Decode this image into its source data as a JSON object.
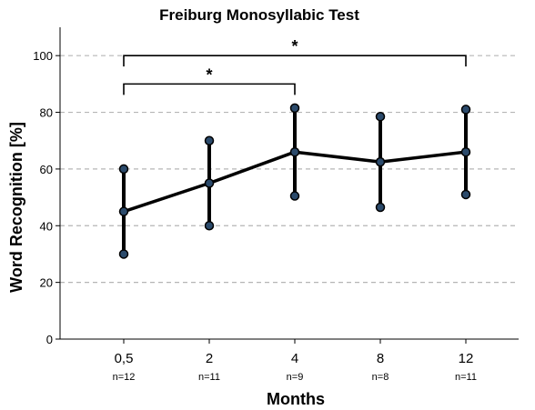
{
  "chart_data": {
    "type": "line",
    "title": "Freiburg Monosyllabic Test",
    "xlabel": "Months",
    "ylabel": "Word Recognition [%]",
    "ylim": [
      0,
      110
    ],
    "yticks": [
      0,
      20,
      40,
      60,
      80,
      100
    ],
    "grid": "horizontal dashed",
    "categories": [
      "0,5",
      "2",
      "4",
      "8",
      "12"
    ],
    "sample_sizes": [
      "n=12",
      "n=11",
      "n=9",
      "n=8",
      "n=11"
    ],
    "series": [
      {
        "values": [
          45,
          55,
          66,
          62.5,
          66
        ],
        "error_low": [
          30,
          40,
          50.5,
          46.5,
          51
        ],
        "error_high": [
          60,
          70,
          81.5,
          78.5,
          81
        ],
        "line_color": "#000000",
        "marker_color": "#2b4a6b"
      }
    ],
    "significance": [
      {
        "from": "0,5",
        "to": "4",
        "label": "*"
      },
      {
        "from": "0,5",
        "to": "12",
        "label": "*"
      }
    ]
  }
}
